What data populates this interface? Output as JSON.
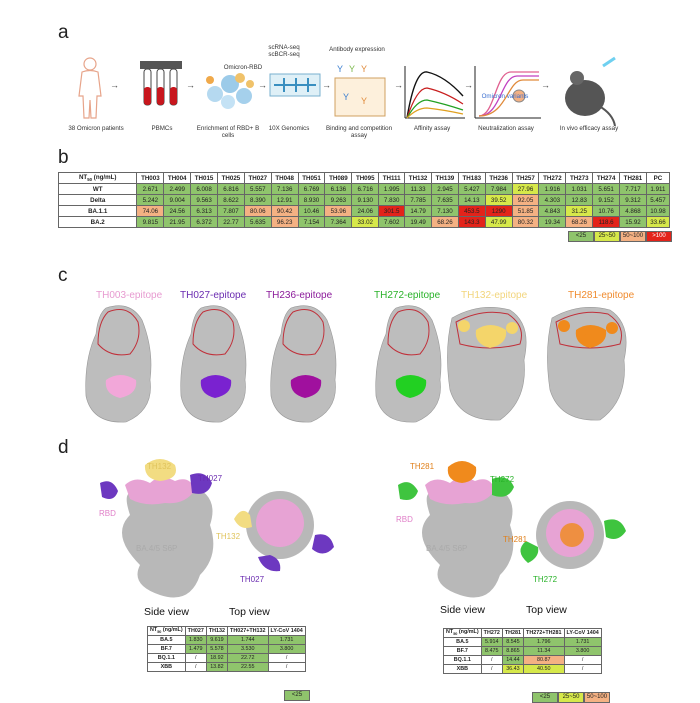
{
  "panel_a": {
    "letter": "a",
    "steps": [
      {
        "label": "38 Omicron patients",
        "icon": "human-body-icon"
      },
      {
        "label": "PBMCs",
        "icon": "blood-tubes-icon"
      },
      {
        "label": "Enrichment of RBD+ B cells",
        "icon": "b-cells-icon",
        "top": "Omicron-RBD"
      },
      {
        "label": "10X Genomics",
        "icon": "microfluidic-chip-icon",
        "top": "scRNA-seq\nscBCR-seq"
      },
      {
        "label": "Binding and competition assay",
        "icon": "elisa-plate-icon",
        "top": "Antibody expression"
      },
      {
        "label": "Affinity assay",
        "icon": "affinity-curve-icon"
      },
      {
        "label": "Neutralization assay",
        "icon": "neutralization-curve-icon",
        "top": "Omicron variants"
      },
      {
        "label": "In vivo efficacy assay",
        "icon": "mouse-icon"
      }
    ]
  },
  "panel_b": {
    "letter": "b",
    "corner": "NT50 (ng/mL)",
    "columns": [
      "TH003",
      "TH004",
      "TH015",
      "TH025",
      "TH027",
      "TH048",
      "TH051",
      "TH089",
      "TH095",
      "TH111",
      "TH132",
      "TH139",
      "TH183",
      "TH236",
      "TH257",
      "TH272",
      "TH273",
      "TH274",
      "TH281",
      "PC"
    ],
    "rows": [
      {
        "name": "WT",
        "values": [
          "2.671",
          "2.499",
          "6.008",
          "6.816",
          "5.557",
          "7.136",
          "6.769",
          "6.136",
          "6.716",
          "1.995",
          "11.33",
          "2.945",
          "5.427",
          "7.984",
          "27.96",
          "1.916",
          "1.031",
          "5.651",
          "7.717",
          "1.911"
        ]
      },
      {
        "name": "Delta",
        "values": [
          "5.242",
          "9.004",
          "9.563",
          "8.622",
          "8.390",
          "12.91",
          "8.930",
          "9.263",
          "9.130",
          "7.830",
          "7.785",
          "7.635",
          "14.13",
          "39.52",
          "92.05",
          "4.303",
          "12.83",
          "9.152",
          "9.312",
          "5.457"
        ]
      },
      {
        "name": "BA.1.1",
        "values": [
          "74.06",
          "24.56",
          "6.313",
          "7.807",
          "80.06",
          "90.42",
          "10.46",
          "53.96",
          "24.06",
          "301.5",
          "14.79",
          "7.130",
          "453.5",
          "1290",
          "51.85",
          "4.843",
          "31.25",
          "10.76",
          "4.868",
          "10.98"
        ]
      },
      {
        "name": "BA.2",
        "values": [
          "9.815",
          "21.95",
          "6.372",
          "22.77",
          "5.635",
          "96.23",
          "7.154",
          "7.364",
          "33.02",
          "7.602",
          "19.49",
          "68.26",
          "143.3",
          "47.99",
          "80.32",
          "19.34",
          "68.26",
          "118.6",
          "15.92",
          "33.66"
        ]
      }
    ],
    "legend": [
      {
        "label": "<25",
        "color": "#8fc46c"
      },
      {
        "label": "25~50",
        "color": "#d6e84a"
      },
      {
        "label": "50~100",
        "color": "#f4b183"
      },
      {
        "label": ">100",
        "color": "#e3231a"
      }
    ]
  },
  "panel_c": {
    "letter": "c",
    "epitopes": [
      {
        "label": "TH003-epitope",
        "color": "#e79ad0",
        "patch": "#f2a7d9"
      },
      {
        "label": "TH027-epitope",
        "color": "#6a2bb0",
        "patch": "#7a22d0"
      },
      {
        "label": "TH236-epitope",
        "color": "#8b1a9a",
        "patch": "#a0109e"
      },
      {
        "label": "TH272-epitope",
        "color": "#29b229",
        "patch": "#22d022"
      },
      {
        "label": "TH132-epitope",
        "color": "#f2d57c",
        "patch": "#f4d56a"
      },
      {
        "label": "TH281-epitope",
        "color": "#f08b2e",
        "patch": "#f08a1c"
      }
    ]
  },
  "panel_d": {
    "letter": "d",
    "left": {
      "labels": {
        "ab1": "TH132",
        "ab2": "TH027",
        "rbd": "RBD",
        "spike": "BA.4/5 S6P",
        "top_ab1": "TH132",
        "top_ab2": "TH027"
      },
      "side_view": "Side view",
      "top_view": "Top view",
      "table": {
        "corner": "NT50 (ng/mL)",
        "columns": [
          "TH027",
          "TH132",
          "TH027+TH132",
          "LY-CoV 1404"
        ],
        "rows": [
          {
            "name": "BA.5",
            "values": [
              "1.830",
              "9.619",
              "1.744",
              "1.731"
            ]
          },
          {
            "name": "BF.7",
            "values": [
              "1.479",
              "5.578",
              "3.530",
              "3.800"
            ]
          },
          {
            "name": "BQ.1.1",
            "values": [
              "/",
              "18.92",
              "22.72",
              "/"
            ]
          },
          {
            "name": "XBB",
            "values": [
              "/",
              "13.82",
              "22.55",
              "/"
            ]
          }
        ],
        "legend": [
          {
            "label": "<25",
            "color": "#8fc46c"
          }
        ]
      }
    },
    "right": {
      "labels": {
        "ab1": "TH281",
        "ab2": "TH272",
        "rbd": "RBD",
        "spike": "BA.4/5 S6P",
        "top_ab1": "TH281",
        "top_ab2": "TH272"
      },
      "side_view": "Side view",
      "top_view": "Top view",
      "table": {
        "corner": "NT50 (ng/mL)",
        "columns": [
          "TH272",
          "TH281",
          "TH272+TH281",
          "LY-CoV 1404"
        ],
        "rows": [
          {
            "name": "BA.5",
            "values": [
              "5.914",
              "8.545",
              "1.796",
              "1.731"
            ]
          },
          {
            "name": "BF.7",
            "values": [
              "8.475",
              "8.865",
              "11.34",
              "3.800"
            ]
          },
          {
            "name": "BQ.1.1",
            "values": [
              "/",
              "14.44",
              "80.87",
              "/"
            ]
          },
          {
            "name": "XBB",
            "values": [
              "/",
              "36.43",
              "40.50",
              "/"
            ]
          }
        ],
        "legend": [
          {
            "label": "<25",
            "color": "#8fc46c"
          },
          {
            "label": "25~50",
            "color": "#d6e84a"
          },
          {
            "label": "50~100",
            "color": "#f4b183"
          }
        ]
      }
    }
  }
}
